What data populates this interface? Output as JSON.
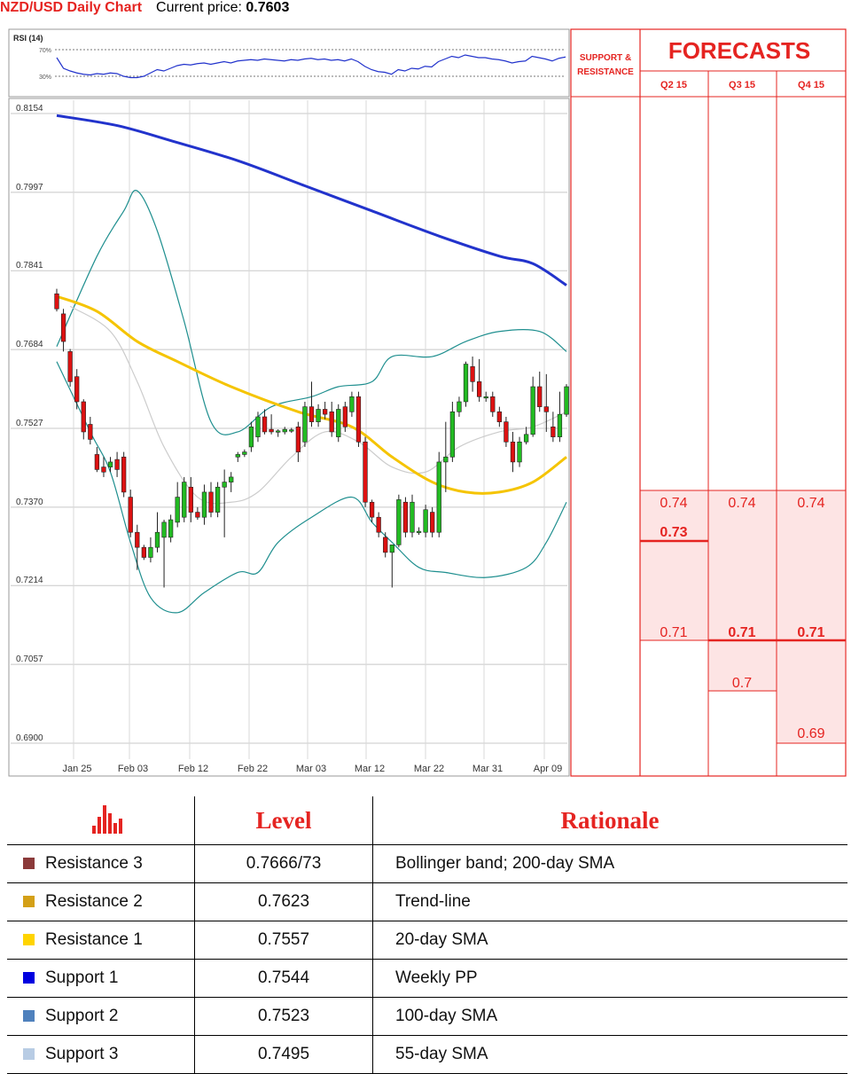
{
  "header": {
    "title": "NZD/USD Daily Chart",
    "price_label": "Current price:",
    "price_value": "0.7603"
  },
  "colors": {
    "red": "#e52421",
    "candle_up": "#22bb22",
    "candle_down": "#dd1111",
    "sma200": "#2233cc",
    "sma55": "#f5c400",
    "bollinger": "#1f8f8f",
    "sma20": "#cccccc",
    "rsi": "#2233cc"
  },
  "chart_data": {
    "type": "candlestick",
    "title": "NZD/USD Daily Chart",
    "yticks": [
      "0.8154",
      "0.7997",
      "0.7841",
      "0.7684",
      "0.7527",
      "0.7370",
      "0.7214",
      "0.7057",
      "0.6900"
    ],
    "ylim": [
      0.69,
      0.8154
    ],
    "xticks": [
      "Jan 25",
      "Feb 03",
      "Feb 12",
      "Feb 22",
      "Mar 03",
      "Mar 12",
      "Mar 22",
      "Mar 31",
      "Apr 09"
    ],
    "candles": [
      [
        0.7795,
        0.7805,
        0.7765,
        0.776
      ],
      [
        0.7755,
        0.7765,
        0.77,
        0.768
      ],
      [
        0.768,
        0.7685,
        0.762,
        0.761
      ],
      [
        0.763,
        0.7645,
        0.758,
        0.7565
      ],
      [
        0.758,
        0.7585,
        0.752,
        0.7505
      ],
      [
        0.7535,
        0.755,
        0.7505,
        0.7495
      ],
      [
        0.7475,
        0.749,
        0.7445,
        0.744
      ],
      [
        0.745,
        0.747,
        0.744,
        0.743
      ],
      [
        0.745,
        0.747,
        0.746,
        0.744
      ],
      [
        0.7465,
        0.748,
        0.7445,
        0.743
      ],
      [
        0.747,
        0.748,
        0.74,
        0.739
      ],
      [
        0.739,
        0.7405,
        0.732,
        0.731
      ],
      [
        0.732,
        0.7335,
        0.729,
        0.7245
      ],
      [
        0.729,
        0.7295,
        0.727,
        0.7265
      ],
      [
        0.727,
        0.731,
        0.729,
        0.726
      ],
      [
        0.729,
        0.736,
        0.732,
        0.728
      ],
      [
        0.731,
        0.7345,
        0.734,
        0.721
      ],
      [
        0.731,
        0.7355,
        0.7345,
        0.73
      ],
      [
        0.734,
        0.742,
        0.739,
        0.733
      ],
      [
        0.735,
        0.743,
        0.742,
        0.734
      ],
      [
        0.741,
        0.743,
        0.736,
        0.734
      ],
      [
        0.736,
        0.737,
        0.735,
        0.7345
      ],
      [
        0.735,
        0.7415,
        0.74,
        0.7335
      ],
      [
        0.74,
        0.742,
        0.736,
        0.735
      ],
      [
        0.736,
        0.742,
        0.741,
        0.735
      ],
      [
        0.741,
        0.7445,
        0.742,
        0.731
      ],
      [
        0.742,
        0.744,
        0.743,
        0.74
      ],
      [
        0.747,
        0.748,
        0.7475,
        0.746
      ],
      [
        0.7475,
        0.7485,
        0.748,
        0.747
      ],
      [
        0.749,
        0.754,
        0.753,
        0.748
      ],
      [
        0.751,
        0.756,
        0.755,
        0.75
      ],
      [
        0.755,
        0.7565,
        0.752,
        0.7515
      ],
      [
        0.7525,
        0.7555,
        0.752,
        0.7515
      ],
      [
        0.752,
        0.7525,
        0.7522,
        0.751
      ],
      [
        0.752,
        0.753,
        0.7525,
        0.7515
      ],
      [
        0.7522,
        0.7528,
        0.7524,
        0.7518
      ],
      [
        0.753,
        0.754,
        0.748,
        0.746
      ],
      [
        0.75,
        0.758,
        0.757,
        0.749
      ],
      [
        0.757,
        0.762,
        0.754,
        0.753
      ],
      [
        0.754,
        0.7575,
        0.7565,
        0.753
      ],
      [
        0.7565,
        0.758,
        0.7555,
        0.7545
      ],
      [
        0.756,
        0.758,
        0.752,
        0.751
      ],
      [
        0.751,
        0.7575,
        0.7565,
        0.75
      ],
      [
        0.757,
        0.758,
        0.753,
        0.752
      ],
      [
        0.756,
        0.76,
        0.759,
        0.755
      ],
      [
        0.759,
        0.76,
        0.75,
        0.749
      ],
      [
        0.75,
        0.751,
        0.738,
        0.737
      ],
      [
        0.738,
        0.7385,
        0.735,
        0.734
      ],
      [
        0.735,
        0.736,
        0.732,
        0.731
      ],
      [
        0.731,
        0.732,
        0.728,
        0.727
      ],
      [
        0.728,
        0.729,
        0.7295,
        0.721
      ],
      [
        0.7295,
        0.7395,
        0.7385,
        0.729
      ],
      [
        0.738,
        0.739,
        0.732,
        0.731
      ],
      [
        0.732,
        0.7395,
        0.738,
        0.731
      ],
      [
        0.732,
        0.733,
        0.7322,
        0.7315
      ],
      [
        0.732,
        0.7375,
        0.7365,
        0.731
      ],
      [
        0.736,
        0.737,
        0.732,
        0.731
      ],
      [
        0.732,
        0.748,
        0.746,
        0.731
      ],
      [
        0.746,
        0.754,
        0.747,
        0.74
      ],
      [
        0.747,
        0.758,
        0.756,
        0.746
      ],
      [
        0.756,
        0.759,
        0.758,
        0.755
      ],
      [
        0.758,
        0.766,
        0.7655,
        0.757
      ],
      [
        0.765,
        0.767,
        0.762,
        0.76
      ],
      [
        0.762,
        0.7665,
        0.759,
        0.758
      ],
      [
        0.759,
        0.76,
        0.759,
        0.758
      ],
      [
        0.759,
        0.76,
        0.756,
        0.755
      ],
      [
        0.756,
        0.757,
        0.754,
        0.753
      ],
      [
        0.754,
        0.755,
        0.75,
        0.749
      ],
      [
        0.75,
        0.752,
        0.746,
        0.744
      ],
      [
        0.746,
        0.751,
        0.75,
        0.745
      ],
      [
        0.75,
        0.753,
        0.7515,
        0.7495
      ],
      [
        0.7515,
        0.763,
        0.761,
        0.751
      ],
      [
        0.761,
        0.764,
        0.757,
        0.756
      ],
      [
        0.757,
        0.7635,
        0.756,
        0.752
      ],
      [
        0.753,
        0.756,
        0.751,
        0.75
      ],
      [
        0.751,
        0.76,
        0.7555,
        0.75
      ],
      [
        0.7555,
        0.7615,
        0.761,
        0.755
      ]
    ],
    "sma200": [
      [
        0,
        0.815
      ],
      [
        9,
        0.813
      ],
      [
        17,
        0.81
      ],
      [
        27,
        0.806
      ],
      [
        37,
        0.801
      ],
      [
        47,
        0.796
      ],
      [
        57,
        0.791
      ],
      [
        66,
        0.787
      ],
      [
        71,
        0.7855
      ],
      [
        76,
        0.7812
      ]
    ],
    "sma55": [
      [
        0,
        0.779
      ],
      [
        6,
        0.776
      ],
      [
        12,
        0.77
      ],
      [
        18,
        0.766
      ],
      [
        26,
        0.761
      ],
      [
        36,
        0.756
      ],
      [
        44,
        0.753
      ],
      [
        50,
        0.747
      ],
      [
        56,
        0.742
      ],
      [
        61,
        0.74
      ],
      [
        66,
        0.74
      ],
      [
        71,
        0.742
      ],
      [
        76,
        0.747
      ]
    ],
    "sma20": [
      [
        2,
        0.777
      ],
      [
        8,
        0.772
      ],
      [
        12,
        0.762
      ],
      [
        16,
        0.749
      ],
      [
        21,
        0.739
      ],
      [
        26,
        0.738
      ],
      [
        30,
        0.74
      ],
      [
        35,
        0.747
      ],
      [
        40,
        0.752
      ],
      [
        45,
        0.75
      ],
      [
        50,
        0.745
      ],
      [
        55,
        0.744
      ],
      [
        60,
        0.749
      ],
      [
        66,
        0.752
      ],
      [
        71,
        0.753
      ],
      [
        76,
        0.756
      ]
    ],
    "bb_upper": [
      [
        0,
        0.769
      ],
      [
        6,
        0.787
      ],
      [
        10,
        0.796
      ],
      [
        12,
        0.8
      ],
      [
        15,
        0.792
      ],
      [
        19,
        0.774
      ],
      [
        23,
        0.754
      ],
      [
        27,
        0.752
      ],
      [
        32,
        0.757
      ],
      [
        38,
        0.759
      ],
      [
        42,
        0.761
      ],
      [
        47,
        0.762
      ],
      [
        50,
        0.767
      ],
      [
        56,
        0.767
      ],
      [
        61,
        0.77
      ],
      [
        66,
        0.772
      ],
      [
        72,
        0.772
      ],
      [
        76,
        0.768
      ]
    ],
    "bb_lower": [
      [
        0,
        0.766
      ],
      [
        5,
        0.752
      ],
      [
        8,
        0.744
      ],
      [
        11,
        0.73
      ],
      [
        14,
        0.719
      ],
      [
        18,
        0.716
      ],
      [
        22,
        0.72
      ],
      [
        27,
        0.724
      ],
      [
        30,
        0.724
      ],
      [
        33,
        0.73
      ],
      [
        38,
        0.735
      ],
      [
        44,
        0.739
      ],
      [
        47,
        0.734
      ],
      [
        50,
        0.73
      ],
      [
        54,
        0.725
      ],
      [
        58,
        0.724
      ],
      [
        64,
        0.723
      ],
      [
        70,
        0.725
      ],
      [
        73,
        0.73
      ],
      [
        76,
        0.738
      ]
    ],
    "rsi": {
      "label": "RSI (14)",
      "levels": [
        "70%",
        "30%"
      ],
      "values": [
        58,
        42,
        38,
        35,
        33,
        32,
        34,
        33,
        35,
        34,
        30,
        28,
        28,
        30,
        35,
        40,
        38,
        42,
        46,
        48,
        47,
        49,
        50,
        48,
        50,
        52,
        50,
        53,
        54,
        55,
        54,
        56,
        55,
        54,
        53,
        55,
        54,
        56,
        57,
        55,
        56,
        54,
        55,
        53,
        56,
        52,
        45,
        40,
        37,
        36,
        33,
        40,
        38,
        42,
        41,
        45,
        44,
        52,
        56,
        60,
        58,
        62,
        60,
        58,
        58,
        56,
        55,
        53,
        50,
        52,
        53,
        60,
        58,
        56,
        53,
        57,
        59
      ]
    },
    "levels": [
      {
        "value": "0.7666",
        "color": "#6b1030"
      },
      {
        "value": "0.7623",
        "color": "#d2a560"
      },
      {
        "value": "0.7557",
        "color": "#f5c400"
      },
      {
        "value": "0.7544",
        "color": "#1b2bb8"
      },
      {
        "value": "0.7523",
        "color": "#3a7fc0"
      },
      {
        "value": "0.7495",
        "color": "#9cc8d6"
      }
    ]
  },
  "forecast_panel": {
    "sr_header": "SUPPORT & RESISTANCE",
    "title": "FORECASTS",
    "columns": [
      "Q2 15",
      "Q3 15",
      "Q4 15"
    ],
    "q2": {
      "top": "0.74",
      "mid": "0.73",
      "low": "0.71"
    },
    "q3": {
      "top": "0.74",
      "mid": "0.71",
      "low": "0.7"
    },
    "q4": {
      "top": "0.74",
      "mid": "0.71",
      "low": "0.69"
    }
  },
  "table": {
    "headers": {
      "level": "Level",
      "rationale": "Rationale"
    },
    "rows": [
      {
        "name": "Resistance 3",
        "level": "0.7666/73",
        "rationale": "Bollinger band; 200-day SMA",
        "color": "#8b3a3a"
      },
      {
        "name": "Resistance 2",
        "level": "0.7623",
        "rationale": "Trend-line",
        "color": "#d4a017"
      },
      {
        "name": "Resistance 1",
        "level": "0.7557",
        "rationale": "20-day SMA",
        "color": "#ffd400"
      },
      {
        "name": "Support 1",
        "level": "0.7544",
        "rationale": "Weekly PP",
        "color": "#0000e0"
      },
      {
        "name": "Support 2",
        "level": "0.7523",
        "rationale": "100-day SMA",
        "color": "#4f81bd"
      },
      {
        "name": "Support 3",
        "level": "0.7495",
        "rationale": "55-day SMA",
        "color": "#b8cce4"
      }
    ]
  }
}
